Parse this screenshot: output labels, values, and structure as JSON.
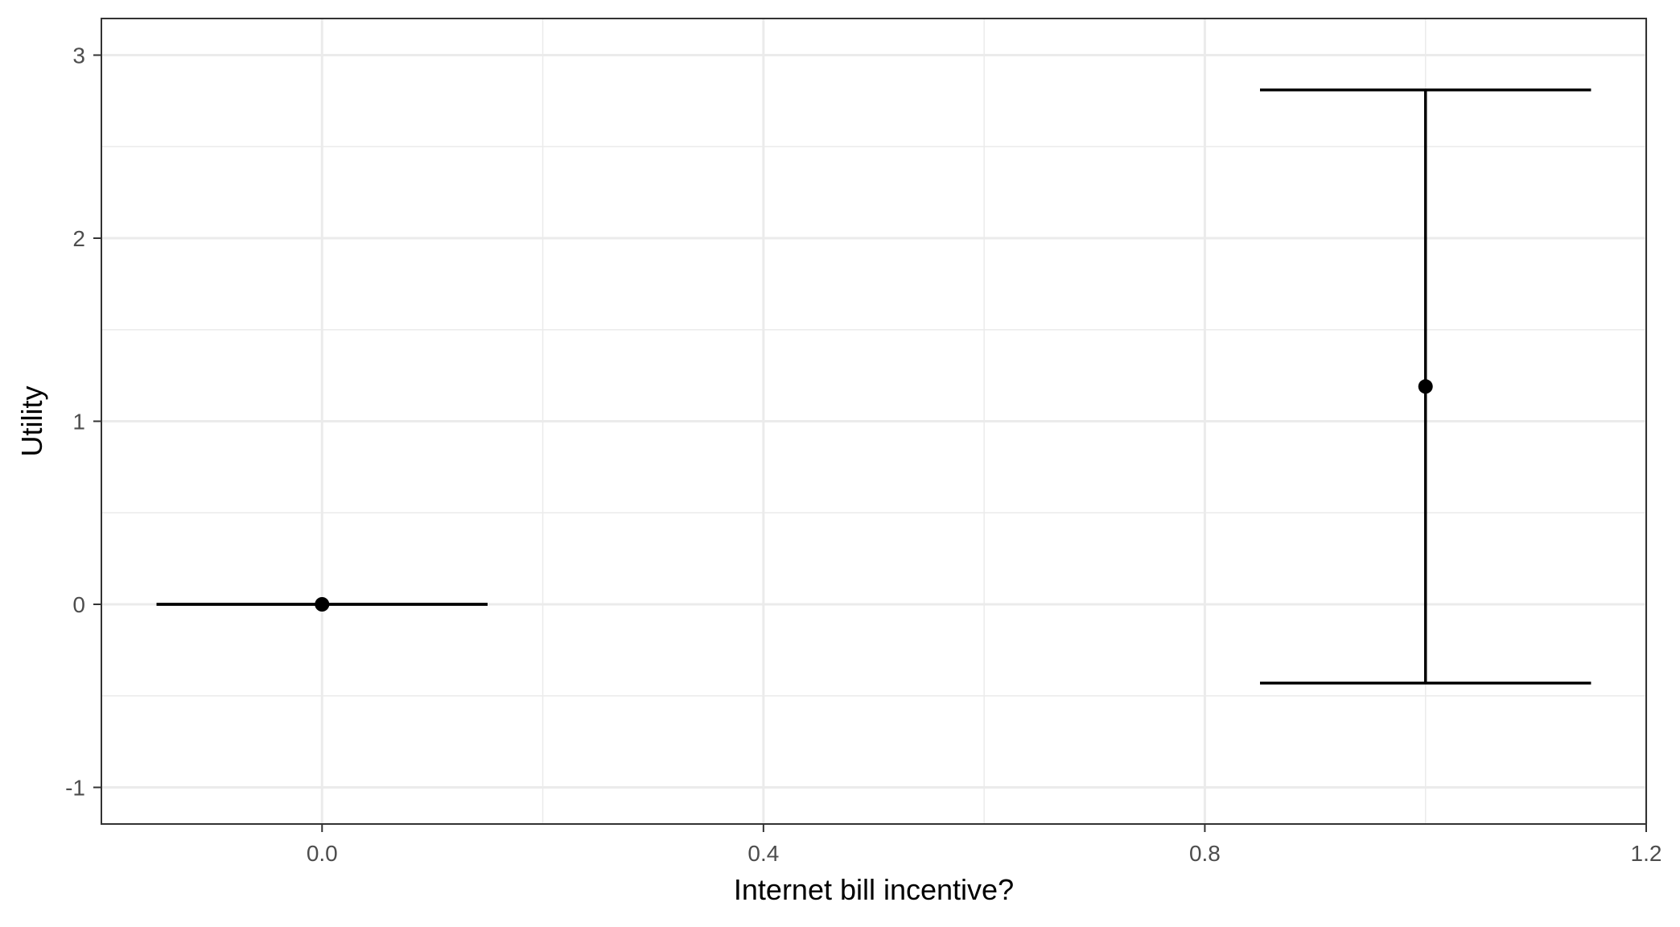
{
  "chart_data": {
    "type": "scatter",
    "title": "",
    "xlabel": "Internet bill incentive?",
    "ylabel": "Utility",
    "xlim": [
      -0.2,
      1.2
    ],
    "ylim": [
      -1.2,
      3.2
    ],
    "x_ticks": [
      0.0,
      0.4,
      0.8,
      1.2
    ],
    "x_tick_labels": [
      "0.0",
      "0.4",
      "0.8",
      "1.2"
    ],
    "x_minor_ticks": [
      0.2,
      0.6,
      1.0
    ],
    "y_ticks": [
      -1,
      0,
      1,
      2,
      3
    ],
    "y_tick_labels": [
      "-1",
      "0",
      "1",
      "2",
      "3"
    ],
    "y_minor_ticks": [
      -0.5,
      0.5,
      1.5,
      2.5
    ],
    "grid": true,
    "legend": "none",
    "errorbar_halfwidth": 0.15,
    "points": [
      {
        "x": 0,
        "y": 0,
        "ymin": 0,
        "ymax": 0
      },
      {
        "x": 1,
        "y": 1.19,
        "ymin": -0.43,
        "ymax": 2.81
      }
    ],
    "colors": {
      "point": "#000000",
      "grid": "#ebebeb",
      "panel_border": "#333333"
    }
  }
}
